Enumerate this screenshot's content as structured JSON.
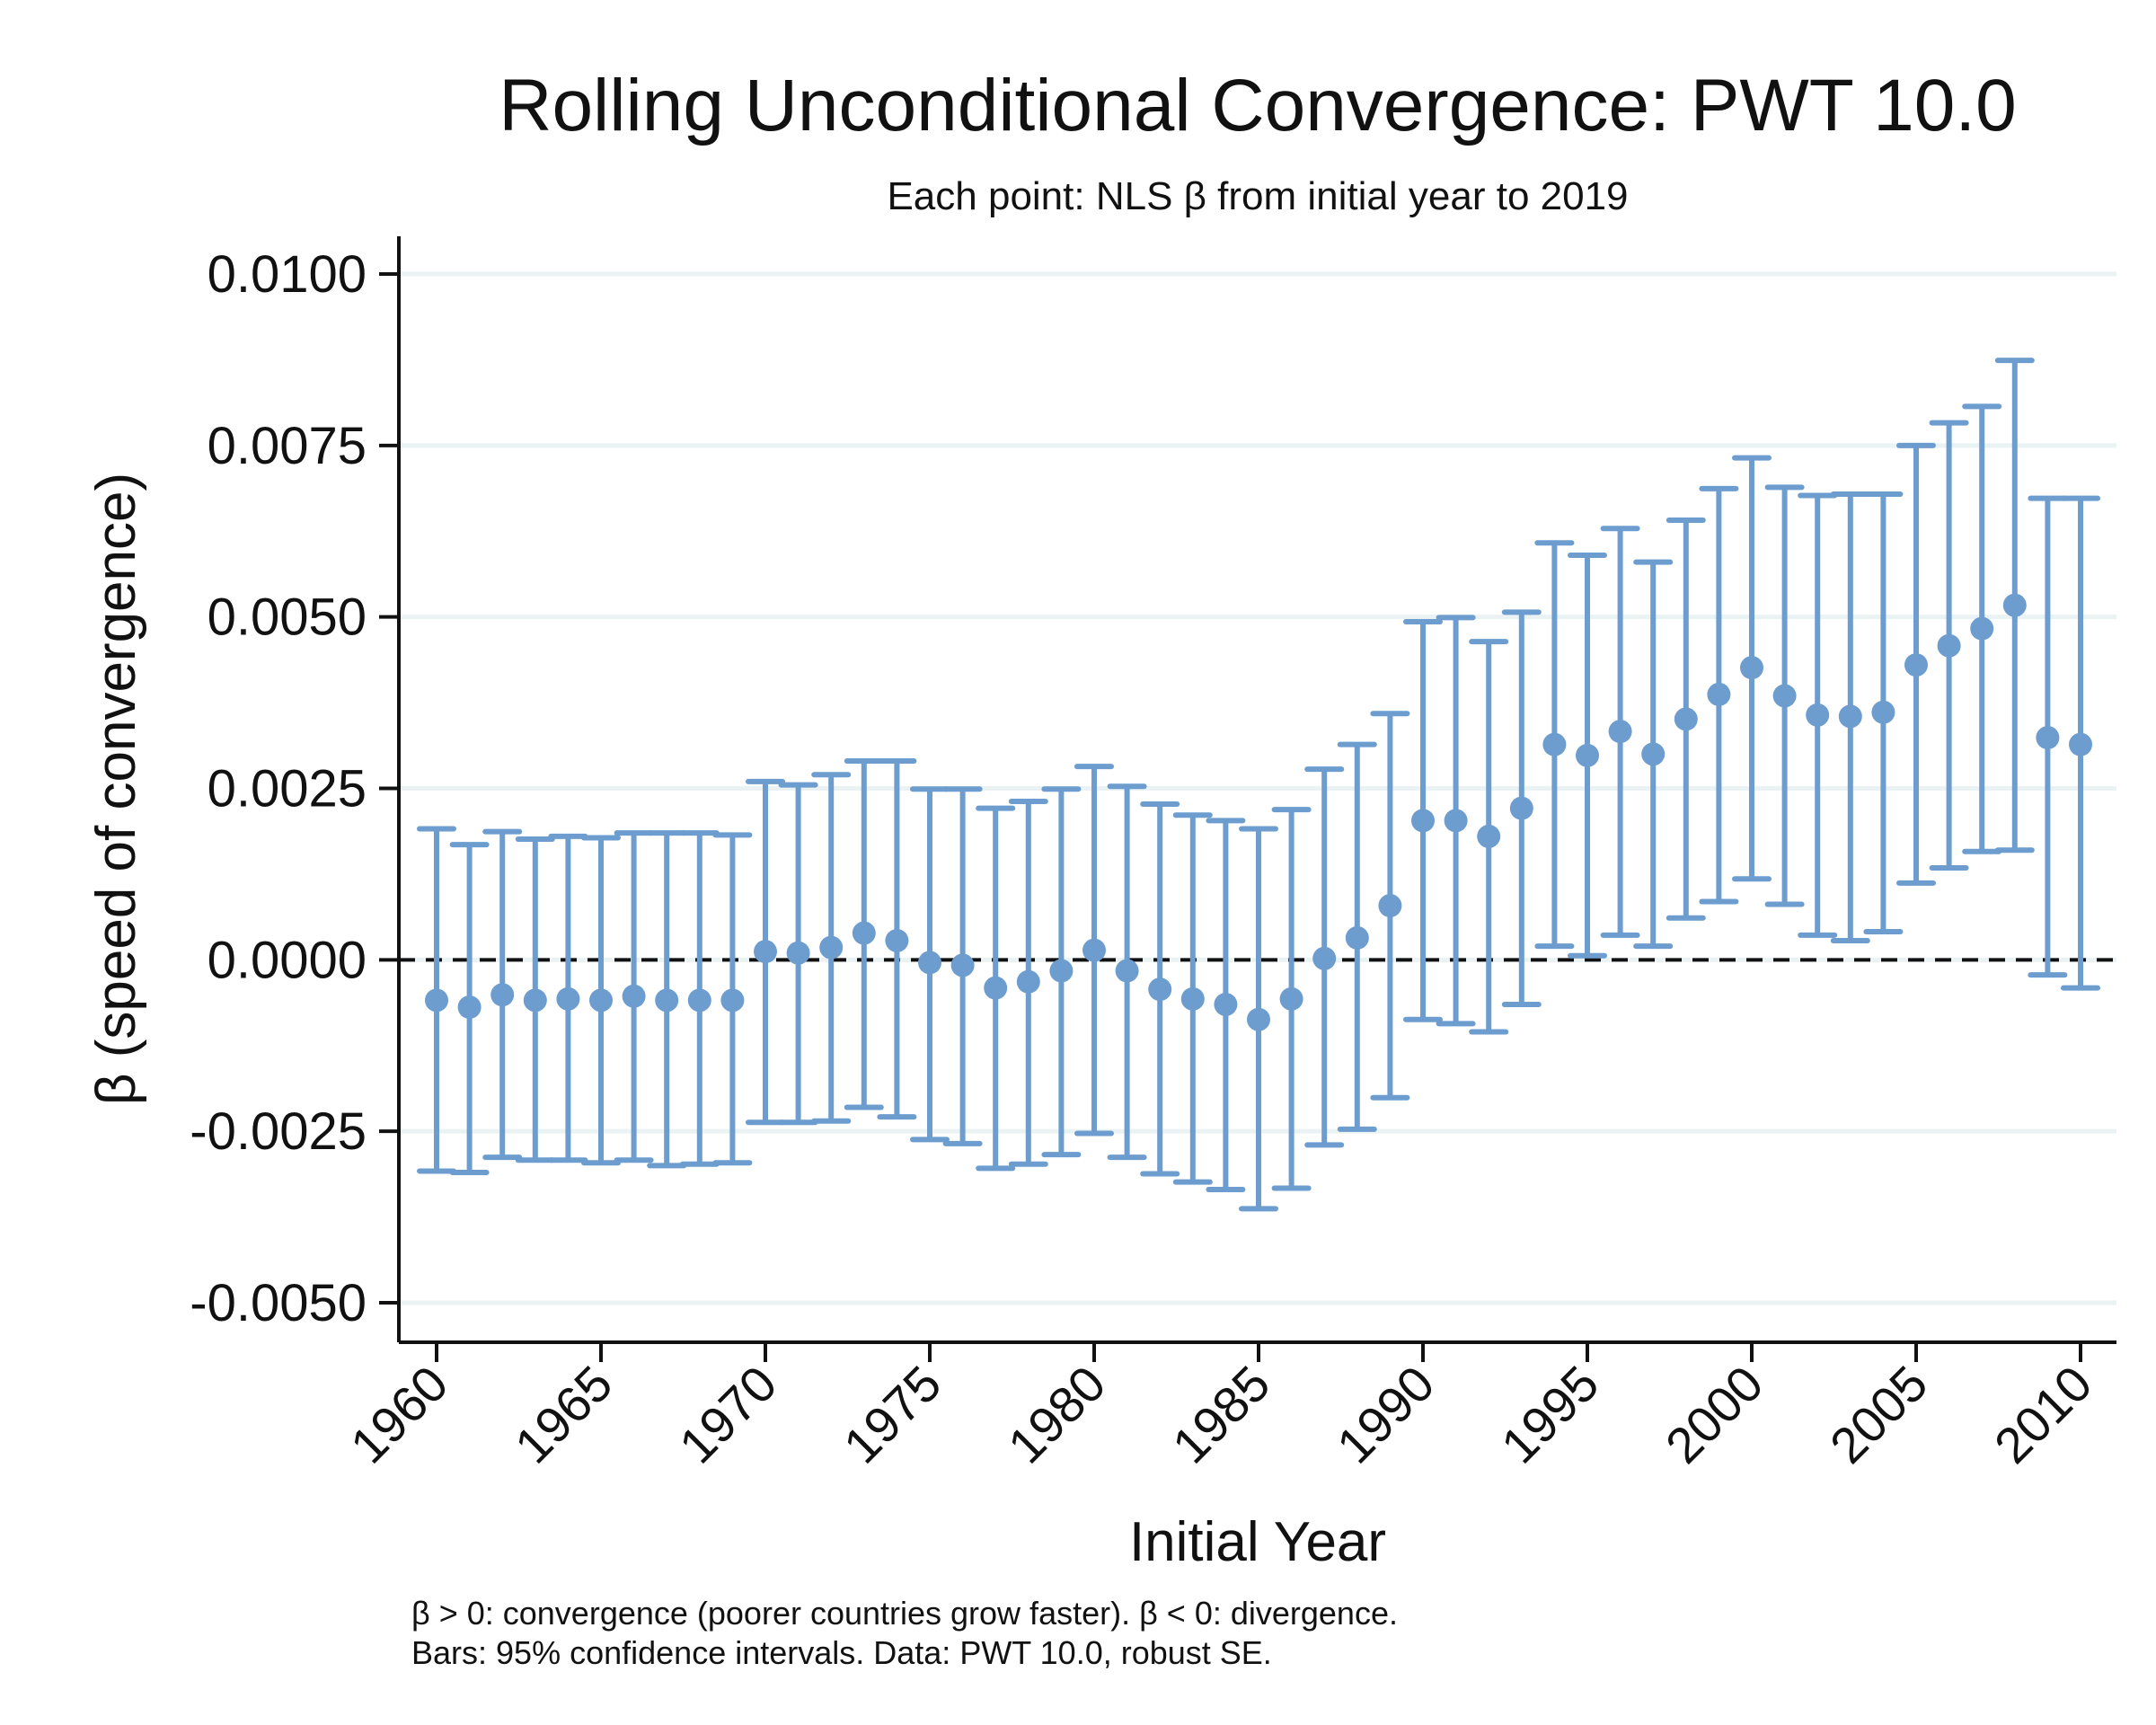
{
  "chart_data": {
    "type": "scatter",
    "title": "Rolling Unconditional Convergence: PWT 10.0",
    "subtitle": "Each point: NLS β from initial year to 2019",
    "xlabel": "Initial Year",
    "ylabel": "β (speed of convergence)",
    "xlim": [
      1959,
      2011
    ],
    "ylim": [
      -0.0061,
      0.0106
    ],
    "xticks": [
      "1960",
      "1965",
      "1970",
      "1975",
      "1980",
      "1985",
      "1990",
      "1995",
      "2000",
      "2005",
      "2010"
    ],
    "yticks": [
      "0.0100",
      "0.0075",
      "0.0050",
      "0.0025",
      "0.0000",
      "-0.0025",
      "-0.0050"
    ],
    "grid": "horizontal",
    "reference_line": 0,
    "color": "#6d9dcf",
    "notes": [
      "β > 0: convergence (poorer countries grow faster). β < 0: divergence.",
      "Bars: 95% confidence intervals. Data: PWT 10.0, robust SE."
    ],
    "x": [
      1960,
      1961,
      1962,
      1963,
      1964,
      1965,
      1966,
      1967,
      1968,
      1969,
      1970,
      1971,
      1972,
      1973,
      1974,
      1975,
      1976,
      1977,
      1978,
      1979,
      1980,
      1981,
      1982,
      1983,
      1984,
      1985,
      1986,
      1987,
      1988,
      1989,
      1990,
      1991,
      1992,
      1993,
      1994,
      1995,
      1996,
      1997,
      1998,
      1999,
      2000,
      2001,
      2002,
      2003,
      2004,
      2005,
      2006,
      2007,
      2008,
      2009,
      2010
    ],
    "beta": [
      -0.00059,
      -0.00069,
      -0.00051,
      -0.00059,
      -0.00057,
      -0.00059,
      -0.00053,
      -0.00059,
      -0.00059,
      -0.00059,
      0.00012,
      0.0001,
      0.00018,
      0.00039,
      0.00028,
      -4e-05,
      -8e-05,
      -0.00041,
      -0.00032,
      -0.00016,
      0.00014,
      -0.00016,
      -0.00043,
      -0.00057,
      -0.00065,
      -0.00087,
      -0.00057,
      2e-05,
      0.00032,
      0.00079,
      0.00203,
      0.00203,
      0.0018,
      0.00221,
      0.00314,
      0.00298,
      0.00333,
      0.003,
      0.00351,
      0.00387,
      0.00426,
      0.00385,
      0.00357,
      0.00355,
      0.00361,
      0.0043,
      0.00458,
      0.00483,
      0.00517,
      0.00324,
      0.00314
    ],
    "ci_upper": [
      0.00191,
      0.00168,
      0.00187,
      0.00176,
      0.0018,
      0.00178,
      0.00185,
      0.00185,
      0.00185,
      0.00182,
      0.0026,
      0.00255,
      0.0027,
      0.0029,
      0.0029,
      0.00249,
      0.00249,
      0.00221,
      0.00231,
      0.00249,
      0.00282,
      0.00253,
      0.00227,
      0.00211,
      0.00203,
      0.00191,
      0.00219,
      0.00278,
      0.00314,
      0.00359,
      0.00493,
      0.00499,
      0.00464,
      0.00507,
      0.00608,
      0.0059,
      0.00629,
      0.0058,
      0.00641,
      0.00687,
      0.00732,
      0.00689,
      0.00677,
      0.00679,
      0.00679,
      0.0075,
      0.00783,
      0.00807,
      0.00874,
      0.00673,
      0.00673
    ],
    "ci_lower": [
      -0.00308,
      -0.0031,
      -0.00288,
      -0.00292,
      -0.00292,
      -0.00296,
      -0.00292,
      -0.003,
      -0.00298,
      -0.00296,
      -0.00237,
      -0.00237,
      -0.00235,
      -0.00215,
      -0.00229,
      -0.00262,
      -0.00268,
      -0.00304,
      -0.00298,
      -0.00284,
      -0.00253,
      -0.00288,
      -0.00312,
      -0.00324,
      -0.00335,
      -0.00363,
      -0.00333,
      -0.0027,
      -0.00247,
      -0.00201,
      -0.00087,
      -0.00093,
      -0.00105,
      -0.00065,
      0.0002,
      6e-05,
      0.00036,
      0.0002,
      0.00061,
      0.00085,
      0.00118,
      0.00081,
      0.00036,
      0.00028,
      0.00041,
      0.00112,
      0.00134,
      0.00158,
      0.0016,
      -0.00022,
      -0.00041
    ]
  }
}
